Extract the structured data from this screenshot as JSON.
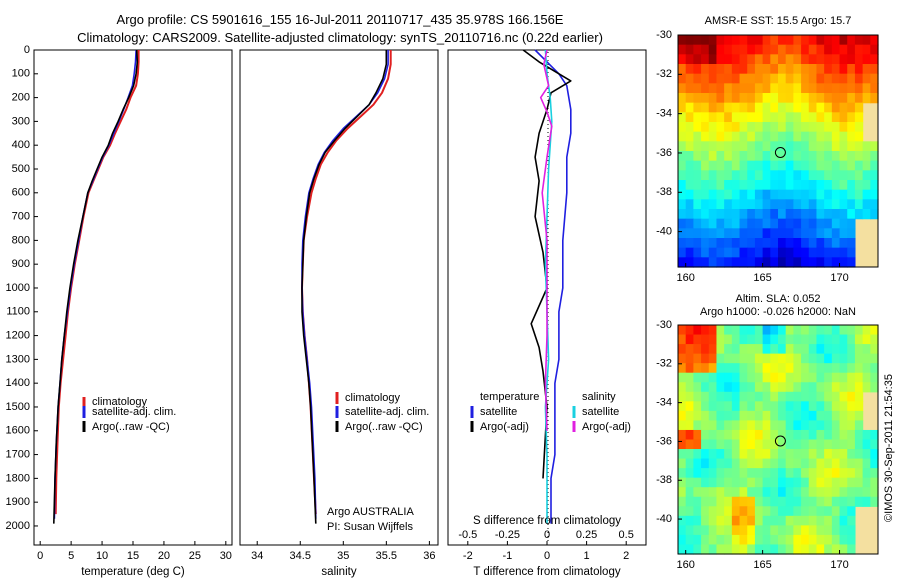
{
  "header": {
    "line1": "Argo profile: CS 5901616_155 16-Jul-2011 20110717_435 35.978S 166.156E",
    "line2": "Climatology: CARS2009. Satellite-adjusted climatology: synTS_20110716.nc (0.22d earlier)"
  },
  "colors": {
    "climatology": "#e02020",
    "satellite": "#1f1fe0",
    "argo": "#000000",
    "satellite_salinity": "#19d0e0",
    "argo_salinity": "#e020e0"
  },
  "chart_data": [
    {
      "id": "temperature",
      "type": "line",
      "xlabel": "temperature (deg C)",
      "ylabel": "",
      "xlim": [
        -1,
        31
      ],
      "ylim": [
        2080,
        0
      ],
      "xticks": [
        0,
        5,
        10,
        15,
        20,
        25,
        30
      ],
      "yticks": [
        0,
        100,
        200,
        300,
        400,
        500,
        600,
        700,
        800,
        900,
        1000,
        1100,
        1200,
        1300,
        1400,
        1500,
        1600,
        1700,
        1800,
        1900,
        2000
      ],
      "legend": {
        "placement": "lower-middle",
        "entries": [
          "climatology",
          "satellite-adj. clim.",
          "Argo(..raw -QC)"
        ]
      },
      "series": [
        {
          "name": "climatology",
          "color_key": "climatology",
          "x": [
            15.9,
            15.9,
            15.8,
            15.5,
            14.6,
            13.9,
            13.0,
            12.1,
            11.3,
            10.2,
            9.4,
            8.6,
            7.8,
            7.0,
            6.3,
            5.6,
            5.0,
            4.5,
            4.1,
            3.7,
            3.3,
            3.0,
            2.8,
            2.6,
            2.5
          ],
          "y": [
            0,
            50,
            100,
            150,
            200,
            250,
            300,
            350,
            400,
            450,
            500,
            550,
            600,
            700,
            800,
            900,
            1000,
            1100,
            1200,
            1300,
            1400,
            1500,
            1650,
            1800,
            1950
          ]
        },
        {
          "name": "satellite-adj. clim.",
          "color_key": "satellite",
          "x": [
            15.5,
            15.4,
            15.2,
            14.9,
            14.2,
            13.5,
            12.7,
            11.9,
            11.1,
            10.1,
            9.3,
            8.5,
            7.7,
            6.9,
            6.2,
            5.5,
            4.9,
            4.4,
            3.9,
            3.5,
            3.2,
            2.9,
            2.6,
            2.4,
            2.3
          ],
          "y": [
            0,
            50,
            100,
            150,
            200,
            250,
            300,
            350,
            400,
            450,
            500,
            550,
            600,
            700,
            800,
            900,
            1000,
            1100,
            1200,
            1300,
            1400,
            1500,
            1650,
            1800,
            1970
          ]
        },
        {
          "name": "Argo(..raw -QC)",
          "color_key": "argo",
          "x": [
            15.6,
            15.7,
            15.5,
            15.1,
            14.3,
            13.4,
            12.6,
            11.7,
            11.0,
            10.0,
            9.2,
            8.4,
            7.7,
            6.9,
            6.1,
            5.4,
            4.8,
            4.3,
            3.9,
            3.5,
            3.2,
            2.9,
            2.6,
            2.4,
            2.2
          ],
          "y": [
            0,
            50,
            100,
            150,
            200,
            250,
            300,
            350,
            400,
            450,
            500,
            550,
            600,
            700,
            800,
            900,
            1000,
            1100,
            1200,
            1300,
            1400,
            1500,
            1650,
            1800,
            1990
          ]
        }
      ]
    },
    {
      "id": "salinity",
      "type": "line",
      "xlabel": "salinity",
      "ylabel": "",
      "xlim": [
        33.8,
        36.1
      ],
      "ylim": [
        2080,
        0
      ],
      "xticks": [
        34,
        34.5,
        35,
        35.5,
        36
      ],
      "xtick_labels": [
        "34",
        "34.5",
        "35",
        "35.5",
        "36"
      ],
      "legend": {
        "placement": "lower-right",
        "entries": [
          "climatology",
          "satellite-adj. clim.",
          "Argo(..raw -QC)"
        ]
      },
      "annotations": [
        "Argo AUSTRALIA",
        "PI: Susan Wijffels"
      ],
      "series": [
        {
          "name": "climatology",
          "color_key": "climatology",
          "x": [
            35.55,
            35.55,
            35.52,
            35.45,
            35.35,
            35.2,
            35.05,
            34.92,
            34.82,
            34.74,
            34.68,
            34.63,
            34.58,
            34.54,
            34.53,
            34.52,
            34.53,
            34.55,
            34.58,
            34.6,
            34.62,
            34.64,
            34.66,
            34.68
          ],
          "y": [
            0,
            60,
            120,
            180,
            230,
            280,
            330,
            380,
            430,
            480,
            540,
            600,
            700,
            800,
            900,
            1000,
            1100,
            1200,
            1300,
            1400,
            1500,
            1650,
            1800,
            1950
          ]
        },
        {
          "name": "satellite-adj. clim.",
          "color_key": "satellite",
          "x": [
            35.52,
            35.52,
            35.48,
            35.4,
            35.3,
            35.15,
            35.0,
            34.88,
            34.78,
            34.71,
            34.65,
            34.6,
            34.56,
            34.53,
            34.52,
            34.52,
            34.53,
            34.55,
            34.58,
            34.61,
            34.63,
            34.65,
            34.67,
            34.68
          ],
          "y": [
            0,
            60,
            120,
            180,
            230,
            280,
            330,
            380,
            430,
            480,
            540,
            600,
            700,
            800,
            900,
            1000,
            1100,
            1200,
            1300,
            1400,
            1500,
            1650,
            1800,
            1970
          ]
        },
        {
          "name": "Argo(..raw -QC)",
          "color_key": "argo",
          "x": [
            35.5,
            35.5,
            35.46,
            35.38,
            35.3,
            35.16,
            35.02,
            34.9,
            34.79,
            34.72,
            34.66,
            34.61,
            34.57,
            34.54,
            34.53,
            34.52,
            34.52,
            34.54,
            34.57,
            34.6,
            34.62,
            34.64,
            34.66,
            34.68
          ],
          "y": [
            0,
            60,
            120,
            180,
            230,
            280,
            330,
            380,
            430,
            480,
            540,
            600,
            700,
            800,
            900,
            1000,
            1100,
            1200,
            1300,
            1400,
            1500,
            1650,
            1800,
            1990
          ]
        }
      ]
    },
    {
      "id": "difference",
      "type": "line",
      "xlabel": "T difference from climatology",
      "xlabel_top": "S difference from climatology",
      "xlim": [
        -2.5,
        2.5
      ],
      "ylim": [
        2080,
        0
      ],
      "xticks": [
        -2,
        -1,
        0,
        1,
        2
      ],
      "xticks_salinity": [
        -0.5,
        -0.25,
        0,
        0.25,
        0.5
      ],
      "xtick_labels_salinity": [
        "-0.5",
        "-0.25",
        "0",
        "0.25",
        "0.5"
      ],
      "legend": {
        "placement": "lower-middle",
        "temperature_title": "temperature",
        "salinity_title": "salinity",
        "entries": [
          "satellite",
          "Argo(-adj)",
          "satellite",
          "Argo(-adj)"
        ]
      },
      "series": [
        {
          "name": "satellite",
          "color_key": "satellite",
          "x": [
            -0.3,
            0.0,
            0.3,
            0.5,
            0.6,
            0.6,
            0.5,
            0.5,
            0.4,
            0.4,
            0.3,
            0.3,
            0.3,
            0.2,
            0.2,
            0.2,
            0.2,
            0.1,
            0.1,
            0.1
          ],
          "y": [
            0,
            50,
            100,
            150,
            250,
            350,
            450,
            600,
            800,
            1000,
            1100,
            1200,
            1300,
            1400,
            1500,
            1600,
            1700,
            1800,
            1900,
            1990
          ]
        },
        {
          "name": "Argo(-adj)",
          "color_key": "argo",
          "x": [
            -0.6,
            -0.2,
            0.6,
            0.1,
            0.0,
            -0.2,
            -0.3,
            -0.2,
            -0.3,
            -0.1,
            0.0,
            -0.4,
            -0.2,
            -0.1,
            0.0,
            -0.1
          ],
          "y": [
            0,
            50,
            130,
            180,
            250,
            350,
            450,
            550,
            700,
            850,
            1000,
            1150,
            1250,
            1350,
            1500,
            1800
          ]
        },
        {
          "name": "satellite (salinity)",
          "color_key": "satellite_salinity",
          "x": [
            -0.01,
            0.0,
            0.02,
            0.03,
            0.02,
            0.01,
            0.0,
            -0.01,
            0.0,
            0.01,
            0.0,
            -0.01,
            0.0,
            0.0,
            0.0
          ],
          "y": [
            0,
            100,
            200,
            300,
            400,
            500,
            700,
            900,
            1100,
            1300,
            1400,
            1500,
            1700,
            1850,
            1990
          ]
        },
        {
          "name": "Argo(-adj) (salinity)",
          "color_key": "argo_salinity",
          "x": [
            0.0,
            -0.02,
            0.01,
            -0.04,
            0.0,
            0.03,
            0.0,
            -0.03,
            0.0,
            0.0,
            0.0,
            -0.01,
            0.0
          ],
          "y": [
            0,
            60,
            150,
            200,
            260,
            320,
            450,
            600,
            800,
            1000,
            1200,
            1400,
            1600
          ]
        }
      ]
    },
    {
      "id": "sst_map",
      "type": "heatmap",
      "title": "AMSR-E SST: 15.5  Argo: 15.7",
      "xlim": [
        159.5,
        172.5
      ],
      "ylim": [
        -41.8,
        -30
      ],
      "xticks": [
        160,
        165,
        170
      ],
      "yticks": [
        -30,
        -32,
        -34,
        -36,
        -38,
        -40
      ],
      "marker": {
        "lon": 166.156,
        "lat": -35.978
      },
      "color_scale": "jet"
    },
    {
      "id": "sla_map",
      "type": "heatmap",
      "title": "Altim. SLA: 0.052",
      "subtitle": "Argo h1000: -0.026 h2000: NaN",
      "xlim": [
        159.5,
        172.5
      ],
      "ylim": [
        -41.8,
        -30
      ],
      "xticks": [
        160,
        165,
        170
      ],
      "yticks": [
        -30,
        -32,
        -34,
        -36,
        -38,
        -40
      ],
      "marker": {
        "lon": 166.156,
        "lat": -35.978
      },
      "color_scale": "jet"
    }
  ],
  "footer": {
    "stamp": "©IMOS 30-Sep-2011 21:54:35"
  }
}
